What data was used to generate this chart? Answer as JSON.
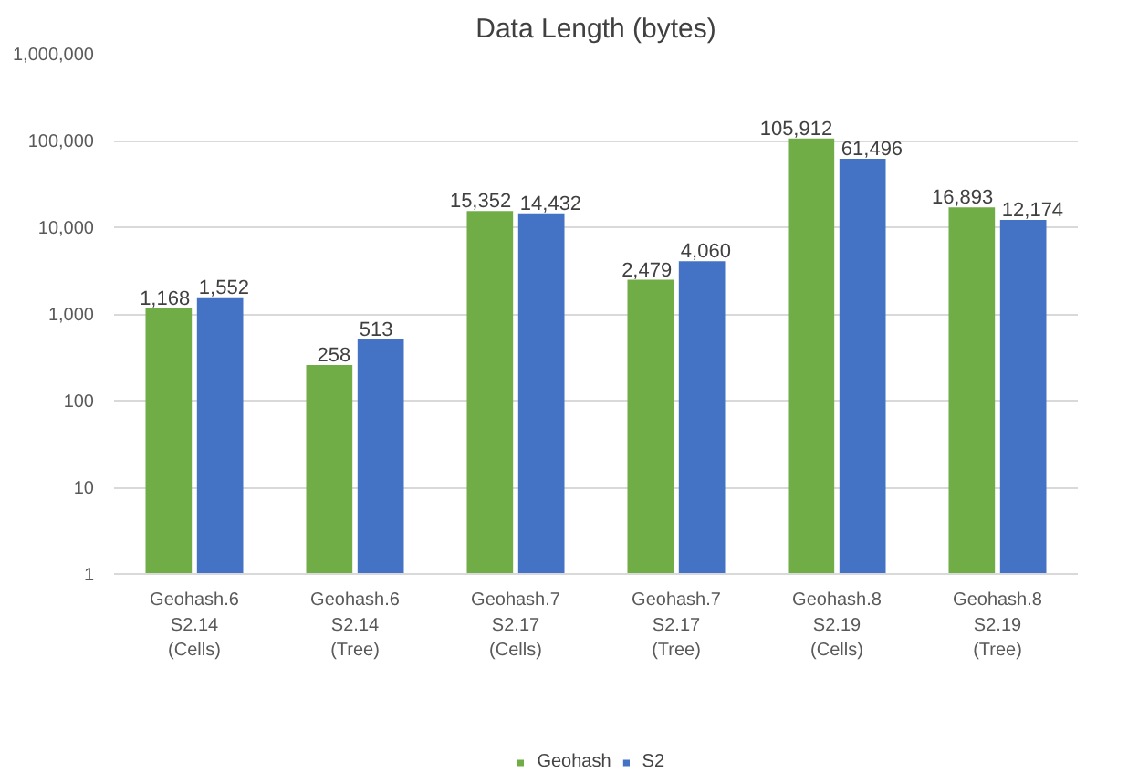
{
  "chart_data": {
    "type": "bar",
    "title": "Data Length (bytes)",
    "categories": [
      "Geohash.6\nS2.14\n(Cells)",
      "Geohash.6\nS2.14\n(Tree)",
      "Geohash.7\nS2.17\n(Cells)",
      "Geohash.7\nS2.17\n(Tree)",
      "Geohash.8\nS2.19\n(Cells)",
      "Geohash.8\nS2.19\n(Tree)"
    ],
    "series": [
      {
        "name": "Geohash",
        "color": "#70ad47",
        "values": [
          1168,
          258,
          15352,
          2479,
          105912,
          16893
        ],
        "value_labels": [
          "1,168",
          "258",
          "15,352",
          "2,479",
          "105,912",
          "16,893"
        ]
      },
      {
        "name": "S2",
        "color": "#4472c4",
        "values": [
          1552,
          513,
          14432,
          4060,
          61496,
          12174
        ],
        "value_labels": [
          "1,552",
          "513",
          "14,432",
          "4,060",
          "61,496",
          "12,174"
        ]
      }
    ],
    "log": "y",
    "ylim": [
      1,
      1000000
    ],
    "yticks": [
      {
        "value": 1,
        "label": "1"
      },
      {
        "value": 10,
        "label": "10"
      },
      {
        "value": 100,
        "label": "100"
      },
      {
        "value": 1000,
        "label": "1,000"
      },
      {
        "value": 10000,
        "label": "10,000"
      },
      {
        "value": 100000,
        "label": "100,000"
      },
      {
        "value": 1000000,
        "label": "1,000,000"
      }
    ],
    "grid": "y",
    "legend": "bottom"
  }
}
